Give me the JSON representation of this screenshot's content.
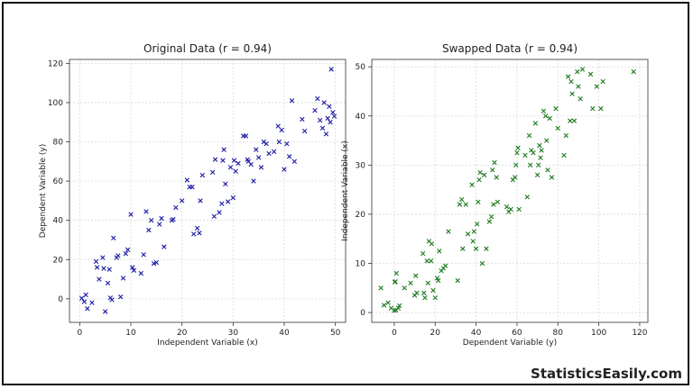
{
  "brand": "StatisticsEasily.com",
  "chart_data": [
    {
      "type": "scatter",
      "title": "Original Data (r = 0.94)",
      "xlabel": "Independent Variable (x)",
      "ylabel": "Dependent Variable (y)",
      "xlim": [
        -2,
        52
      ],
      "ylim": [
        -12,
        122
      ],
      "xticks": [
        0,
        10,
        20,
        30,
        40,
        50
      ],
      "yticks": [
        0,
        20,
        40,
        60,
        80,
        100,
        120
      ],
      "grid": true,
      "marker": "x",
      "color": "#1a1aa6",
      "points": [
        [
          0.4,
          0.3
        ],
        [
          0.9,
          -1.5
        ],
        [
          1.2,
          2.0
        ],
        [
          1.5,
          -5.0
        ],
        [
          2.4,
          -2.0
        ],
        [
          3.2,
          19.0
        ],
        [
          3.4,
          16.0
        ],
        [
          3.8,
          10.0
        ],
        [
          4.5,
          21.0
        ],
        [
          4.7,
          15.5
        ],
        [
          5.0,
          -6.5
        ],
        [
          5.5,
          8.0
        ],
        [
          5.8,
          15.0
        ],
        [
          6.0,
          0.5
        ],
        [
          6.3,
          -0.5
        ],
        [
          6.6,
          31.0
        ],
        [
          7.2,
          21.0
        ],
        [
          7.5,
          22.0
        ],
        [
          8.0,
          1.0
        ],
        [
          8.5,
          10.5
        ],
        [
          9.0,
          23.0
        ],
        [
          9.4,
          25.0
        ],
        [
          10.0,
          43.0
        ],
        [
          10.3,
          16.0
        ],
        [
          10.6,
          14.5
        ],
        [
          12.0,
          13.0
        ],
        [
          12.5,
          22.5
        ],
        [
          13.0,
          44.5
        ],
        [
          13.5,
          35.0
        ],
        [
          14.0,
          40.0
        ],
        [
          14.5,
          18.0
        ],
        [
          15.0,
          18.5
        ],
        [
          15.6,
          38.0
        ],
        [
          16.0,
          41.0
        ],
        [
          16.5,
          26.5
        ],
        [
          18.0,
          40.0
        ],
        [
          18.3,
          40.5
        ],
        [
          18.8,
          46.5
        ],
        [
          20.0,
          50.0
        ],
        [
          21.0,
          60.5
        ],
        [
          21.5,
          57.0
        ],
        [
          22.0,
          57.0
        ],
        [
          22.3,
          33.0
        ],
        [
          23.0,
          36.0
        ],
        [
          23.4,
          33.5
        ],
        [
          23.6,
          50.0
        ],
        [
          24.0,
          63.0
        ],
        [
          26.0,
          64.5
        ],
        [
          26.3,
          42.0
        ],
        [
          26.5,
          71.0
        ],
        [
          27.3,
          44.0
        ],
        [
          27.8,
          48.5
        ],
        [
          28.0,
          70.5
        ],
        [
          28.2,
          76.0
        ],
        [
          28.5,
          58.5
        ],
        [
          29.0,
          49.5
        ],
        [
          29.5,
          67.0
        ],
        [
          30.0,
          51.5
        ],
        [
          30.2,
          70.5
        ],
        [
          30.5,
          65.0
        ],
        [
          31.0,
          69.0
        ],
        [
          32.0,
          83.0
        ],
        [
          32.5,
          83.0
        ],
        [
          32.8,
          71.0
        ],
        [
          33.0,
          70.0
        ],
        [
          33.5,
          68.5
        ],
        [
          34.0,
          60.0
        ],
        [
          34.5,
          76.0
        ],
        [
          35.0,
          72.0
        ],
        [
          35.5,
          67.0
        ],
        [
          36.0,
          80.0
        ],
        [
          36.5,
          79.0
        ],
        [
          37.0,
          74.0
        ],
        [
          38.0,
          75.0
        ],
        [
          38.8,
          88.0
        ],
        [
          39.0,
          80.0
        ],
        [
          39.5,
          86.0
        ],
        [
          40.0,
          66.0
        ],
        [
          40.5,
          79.0
        ],
        [
          41.0,
          72.5
        ],
        [
          41.5,
          101.0
        ],
        [
          42.0,
          70.0
        ],
        [
          43.5,
          91.5
        ],
        [
          44.0,
          85.5
        ],
        [
          46.0,
          96.0
        ],
        [
          46.5,
          102.0
        ],
        [
          47.0,
          91.0
        ],
        [
          47.5,
          87.0
        ],
        [
          47.8,
          100.0
        ],
        [
          48.2,
          84.0
        ],
        [
          48.5,
          92.0
        ],
        [
          48.8,
          98.0
        ],
        [
          49.0,
          90.0
        ],
        [
          49.2,
          117.0
        ],
        [
          49.5,
          95.0
        ],
        [
          49.8,
          93.0
        ]
      ]
    },
    {
      "type": "scatter",
      "title": "Swapped Data (r = 0.94)",
      "xlabel": "Dependent Variable (y)",
      "ylabel": "Independent Variable (x)",
      "xlim": [
        -11,
        124
      ],
      "ylim": [
        -2,
        51.5
      ],
      "xticks": [
        0,
        20,
        40,
        60,
        80,
        100,
        120
      ],
      "yticks": [
        0,
        10,
        20,
        30,
        40,
        50
      ],
      "grid": true,
      "marker": "x",
      "color": "#1d7a1d",
      "points": [
        [
          -6.5,
          5.0
        ],
        [
          -5.0,
          1.5
        ],
        [
          -3.0,
          2.0
        ],
        [
          -1.5,
          0.9
        ],
        [
          0.0,
          0.4
        ],
        [
          0.3,
          6.2
        ],
        [
          0.5,
          6.3
        ],
        [
          0.8,
          0.5
        ],
        [
          1.0,
          8.0
        ],
        [
          2.0,
          0.9
        ],
        [
          2.5,
          1.4
        ],
        [
          5.0,
          5.0
        ],
        [
          8.0,
          6.0
        ],
        [
          10.0,
          3.5
        ],
        [
          10.5,
          7.5
        ],
        [
          11.0,
          4.0
        ],
        [
          14.0,
          12.0
        ],
        [
          14.5,
          4.0
        ],
        [
          15.0,
          3.0
        ],
        [
          16.0,
          10.5
        ],
        [
          16.5,
          6.0
        ],
        [
          17.0,
          14.5
        ],
        [
          18.0,
          10.5
        ],
        [
          18.3,
          14.0
        ],
        [
          19.0,
          4.5
        ],
        [
          20.0,
          3.0
        ],
        [
          21.0,
          7.0
        ],
        [
          21.5,
          6.5
        ],
        [
          22.0,
          12.5
        ],
        [
          23.0,
          8.5
        ],
        [
          24.0,
          9.0
        ],
        [
          25.0,
          9.5
        ],
        [
          26.5,
          16.5
        ],
        [
          31.0,
          6.5
        ],
        [
          32.0,
          22.0
        ],
        [
          33.0,
          23.0
        ],
        [
          33.5,
          13.0
        ],
        [
          35.0,
          22.0
        ],
        [
          36.0,
          16.0
        ],
        [
          38.0,
          26.0
        ],
        [
          38.5,
          14.5
        ],
        [
          39.0,
          16.5
        ],
        [
          40.0,
          13.0
        ],
        [
          40.5,
          18.0
        ],
        [
          41.0,
          22.5
        ],
        [
          41.5,
          27.0
        ],
        [
          42.0,
          28.5
        ],
        [
          43.0,
          10.0
        ],
        [
          44.0,
          28.0
        ],
        [
          45.0,
          13.0
        ],
        [
          46.5,
          18.5
        ],
        [
          47.5,
          19.5
        ],
        [
          48.0,
          29.0
        ],
        [
          48.5,
          22.0
        ],
        [
          49.0,
          30.5
        ],
        [
          50.0,
          27.5
        ],
        [
          50.5,
          22.5
        ],
        [
          55.0,
          21.5
        ],
        [
          56.0,
          20.5
        ],
        [
          57.0,
          21.0
        ],
        [
          58.0,
          27.0
        ],
        [
          59.0,
          27.5
        ],
        [
          59.5,
          30.0
        ],
        [
          60.0,
          32.5
        ],
        [
          60.5,
          33.5
        ],
        [
          61.0,
          21.0
        ],
        [
          64.0,
          32.0
        ],
        [
          65.0,
          23.5
        ],
        [
          66.0,
          36.0
        ],
        [
          66.5,
          30.0
        ],
        [
          67.0,
          33.0
        ],
        [
          68.0,
          32.5
        ],
        [
          69.0,
          38.5
        ],
        [
          70.0,
          28.0
        ],
        [
          70.5,
          30.0
        ],
        [
          71.0,
          34.0
        ],
        [
          71.5,
          31.5
        ],
        [
          72.0,
          33.0
        ],
        [
          73.0,
          41.0
        ],
        [
          74.0,
          40.0
        ],
        [
          74.5,
          35.0
        ],
        [
          75.0,
          29.0
        ],
        [
          76.0,
          39.5
        ],
        [
          77.0,
          27.5
        ],
        [
          79.0,
          41.5
        ],
        [
          80.0,
          37.5
        ],
        [
          83.0,
          32.0
        ],
        [
          84.0,
          36.0
        ],
        [
          85.0,
          48.0
        ],
        [
          86.0,
          39.0
        ],
        [
          86.5,
          47.0
        ],
        [
          87.0,
          44.5
        ],
        [
          88.0,
          39.0
        ],
        [
          89.5,
          49.0
        ],
        [
          90.0,
          46.0
        ],
        [
          91.0,
          43.5
        ],
        [
          92.0,
          49.5
        ],
        [
          96.0,
          48.5
        ],
        [
          97.0,
          41.5
        ],
        [
          99.0,
          46.0
        ],
        [
          101.0,
          41.5
        ],
        [
          102.0,
          47.0
        ],
        [
          117.0,
          49.0
        ]
      ]
    }
  ]
}
